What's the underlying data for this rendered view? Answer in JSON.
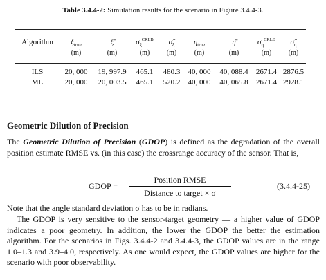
{
  "caption": {
    "label": "Table 3.4.4-2:",
    "text": "Simulation results for the scenario in Figure 3.4.4-3."
  },
  "table": {
    "headers": [
      "Algorithm",
      "ξ",
      "ξ̄",
      "σ",
      "σ̂",
      "η",
      "η̄",
      "σ",
      "σ̂"
    ],
    "header_subs": [
      "",
      "true",
      "",
      "ξ",
      "ξ",
      "true",
      "",
      "η",
      "η"
    ],
    "header_sups": [
      "",
      "",
      "",
      "CRLB",
      "",
      "",
      "",
      "CRLB",
      ""
    ],
    "units": [
      "",
      "(m)",
      "(m)",
      "(m)",
      "(m)",
      "(m)",
      "(m)",
      "(m)",
      "(m)"
    ],
    "rows": [
      [
        "ILS",
        "20, 000",
        "19, 997.9",
        "465.1",
        "480.3",
        "40, 000",
        "40, 088.4",
        "2671.4",
        "2876.5"
      ],
      [
        "ML",
        "20, 000",
        "20, 003.5",
        "465.1",
        "520.2",
        "40, 000",
        "40, 065.8",
        "2671.4",
        "2928.1"
      ]
    ]
  },
  "section_title": "Geometric Dilution of Precision",
  "para1": {
    "t1": "The ",
    "term": "Geometric Dilution of Precision",
    "t2": " (",
    "abbr": "GDOP",
    "t3": ") is defined as the degradation of the overall position estimate RMSE vs. (in this case) the crossrange accuracy of the sensor. That is,"
  },
  "equation": {
    "lhs": "GDOP =",
    "numerator": "Position RMSE",
    "denominator": "Distance to target × σ",
    "number": "(3.4.4-25)"
  },
  "para2": "Note that the angle standard deviation σ has to be in radians.",
  "para3": "The GDOP is very sensitive to the sensor-target geometry — a higher value of GDOP indicates a poor geometry. In addition, the lower the GDOP the better the estimation algorithm. For the scenarios in Figs. 3.4.4-2 and 3.4.4-3, the GDOP values are in the range 1.0–1.3 and 3.9–4.0, respectively. As one would expect, the GDOP values are higher for the scenario with poor observability."
}
